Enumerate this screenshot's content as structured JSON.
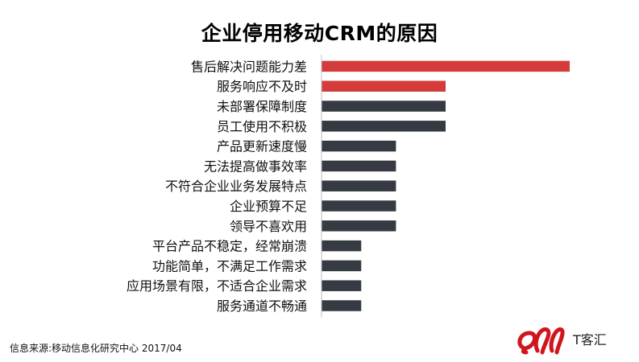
{
  "title": "企业停用移动CRM的原因",
  "source": "信息来源:移动信息化研究中心 2017/04",
  "logo": {
    "text": "T客汇",
    "brand_color": "#d0161c"
  },
  "colors": {
    "highlight": "#d43b3b",
    "normal": "#363b43",
    "axis": "#bfbfbf"
  },
  "chart_data": {
    "type": "bar",
    "orientation": "horizontal",
    "title": "企业停用移动CRM的原因",
    "xlabel": "",
    "ylabel": "",
    "grid": false,
    "legend": "none",
    "value_axis_shown": false,
    "xlim": [
      0,
      5
    ],
    "categories": [
      "售后解决问题能力差",
      "服务响应不及时",
      "未部署保障制度",
      "员工使用不积极",
      "产品更新速度慢",
      "无法提高做事效率",
      "不符合企业业务发展特点",
      "企业预算不足",
      "领导不喜欢用",
      "平台产品不稳定，经常崩溃",
      "功能简单，不满足工作需求",
      "应用场景有限，不适合企业需求",
      "服务通道不畅通"
    ],
    "values": [
      5,
      2.5,
      2.5,
      2.5,
      1.5,
      1.5,
      1.5,
      1.5,
      1.5,
      0.8,
      0.8,
      0.8,
      0.8
    ],
    "highlighted": [
      true,
      true,
      false,
      false,
      false,
      false,
      false,
      false,
      false,
      false,
      false,
      false,
      false
    ]
  }
}
